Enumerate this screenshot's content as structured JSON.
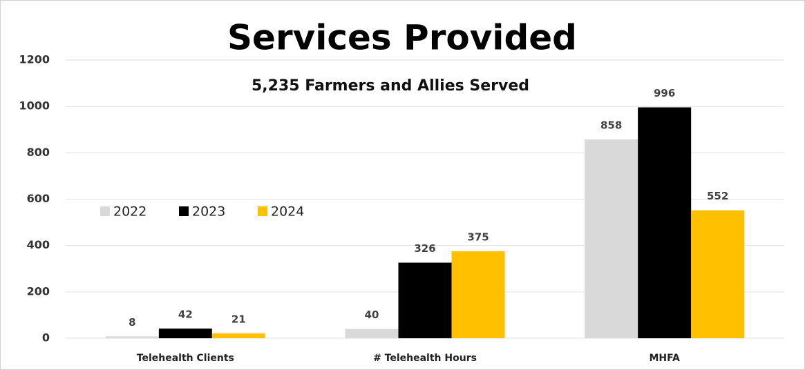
{
  "chart_data": {
    "type": "bar",
    "title": "Services Provided",
    "subtitle": "5,235 Farmers and Allies Served",
    "categories": [
      "Telehealth Clients",
      "# Telehealth Hours",
      "MHFA"
    ],
    "series": [
      {
        "name": "2022",
        "color": "#d9d9d9",
        "values": [
          8,
          40,
          858
        ]
      },
      {
        "name": "2023",
        "color": "#000000",
        "values": [
          42,
          326,
          996
        ]
      },
      {
        "name": "2024",
        "color": "#ffc000",
        "values": [
          21,
          375,
          552
        ]
      }
    ],
    "ylim": [
      0,
      1200
    ],
    "yticks": [
      0,
      200,
      400,
      600,
      800,
      1000,
      1200
    ],
    "grid": true
  }
}
